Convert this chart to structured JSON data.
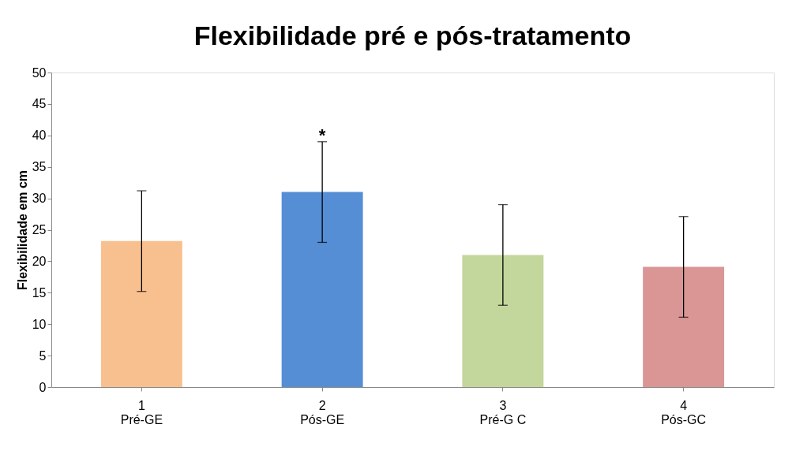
{
  "chart_data": {
    "type": "bar",
    "title": "Flexibilidade pré e  pós-tratamento",
    "ylabel": "Flexibilidade em cm",
    "categories": [
      "1\nPré-GE",
      "2\nPós-GE",
      "3\nPré-G C",
      "4\nPós-GC"
    ],
    "values": [
      23.2,
      31.0,
      21.0,
      19.1
    ],
    "colors": [
      "#f9c08f",
      "#558ed5",
      "#c3d69b",
      "#d99694"
    ],
    "errors": [
      8,
      8,
      8,
      8
    ],
    "ylim": [
      0,
      50
    ],
    "yticks": [
      0,
      5,
      10,
      15,
      20,
      25,
      30,
      35,
      40,
      45,
      50
    ],
    "grid": false,
    "annotations": [
      {
        "text": "*",
        "x": "2\nPós-GE",
        "y": 39
      }
    ]
  }
}
